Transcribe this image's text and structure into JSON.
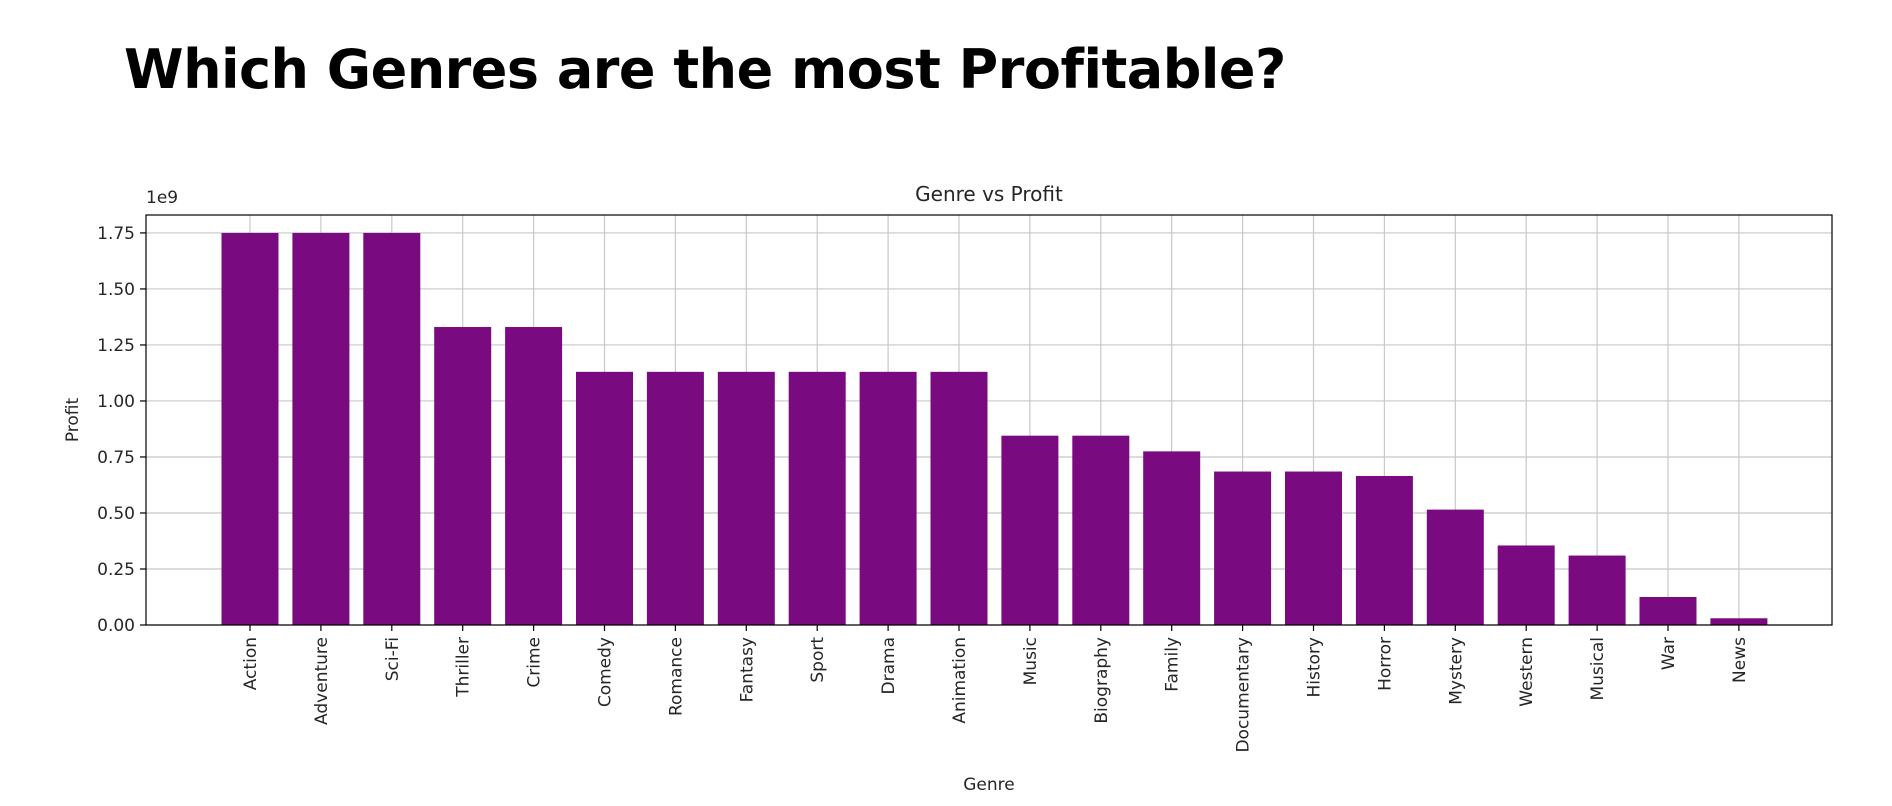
{
  "page": {
    "heading": "Which Genres are the most Profitable?"
  },
  "chart_data": {
    "type": "bar",
    "title": "Genre vs Profit",
    "xlabel": "Genre",
    "ylabel": "Profit",
    "y_scale_label": "1e9",
    "categories": [
      "Action",
      "Adventure",
      "Sci-Fi",
      "Thriller",
      "Crime",
      "Comedy",
      "Romance",
      "Fantasy",
      "Sport",
      "Drama",
      "Animation",
      "Music",
      "Biography",
      "Family",
      "Documentary",
      "History",
      "Horror",
      "Mystery",
      "Western",
      "Musical",
      "War",
      "News"
    ],
    "values": [
      1.75,
      1.75,
      1.75,
      1.33,
      1.33,
      1.13,
      1.13,
      1.13,
      1.13,
      1.13,
      1.13,
      0.845,
      0.845,
      0.775,
      0.685,
      0.685,
      0.665,
      0.515,
      0.355,
      0.31,
      0.125,
      0.03
    ],
    "ylim": [
      0,
      1.83
    ],
    "yticks": [
      0.0,
      0.25,
      0.5,
      0.75,
      1.0,
      1.25,
      1.5,
      1.75
    ],
    "ytick_labels": [
      "0.00",
      "0.25",
      "0.50",
      "0.75",
      "1.00",
      "1.25",
      "1.50",
      "1.75"
    ],
    "grid": true,
    "bar_color": "#7a0a7f"
  }
}
